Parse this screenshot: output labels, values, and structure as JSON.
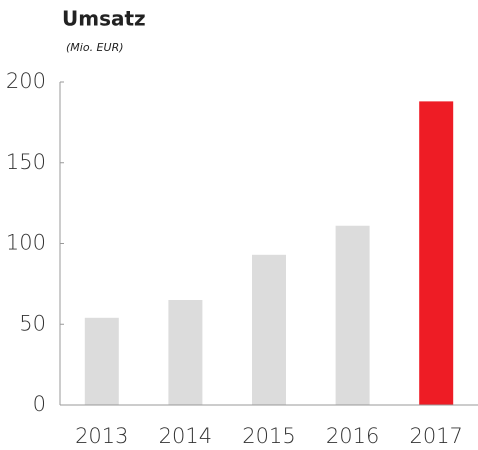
{
  "chart_data": {
    "type": "bar",
    "title": "Umsatz",
    "subtitle": "(Mio. EUR)",
    "categories": [
      "2013",
      "2014",
      "2015",
      "2016",
      "2017"
    ],
    "values": [
      54,
      65,
      93,
      111,
      188
    ],
    "colors": [
      "#dcdcdc",
      "#dcdcdc",
      "#dcdcdc",
      "#dcdcdc",
      "#ee1c25"
    ],
    "ylim": [
      0,
      200
    ],
    "yticks": [
      0,
      50,
      100,
      150,
      200
    ],
    "grid": false
  }
}
